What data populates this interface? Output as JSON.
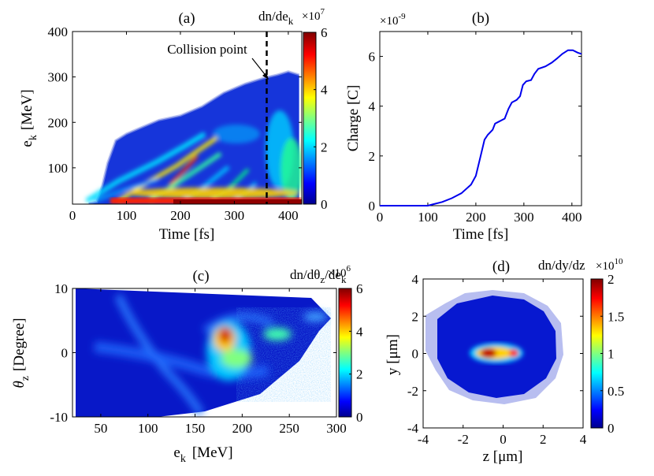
{
  "chart_data": [
    {
      "type": "heatmap",
      "panel_label": "(a)",
      "xlabel": "Time [fs]",
      "ylabel_main": "e",
      "ylabel_sub": "k",
      "ylabel_unit": "[MeV]",
      "xlim": [
        0,
        425
      ],
      "ylim": [
        20,
        400
      ],
      "xticks": [
        "0",
        "100",
        "200",
        "300",
        "400"
      ],
      "yticks": [
        "100",
        "200",
        "300",
        "400"
      ],
      "colorbar": {
        "label_main": "dn/de",
        "label_sub": "k",
        "multiplier_base": "×10",
        "multiplier_exp": "7",
        "ticks": [
          "0",
          "2",
          "4",
          "6"
        ],
        "range": [
          0,
          6
        ]
      },
      "annotation": {
        "text": "Collision point",
        "x_fs": 360
      },
      "envelope_upper_mev": [
        [
          30,
          22
        ],
        [
          45,
          25
        ],
        [
          55,
          60
        ],
        [
          65,
          110
        ],
        [
          80,
          160
        ],
        [
          100,
          175
        ],
        [
          130,
          190
        ],
        [
          160,
          205
        ],
        [
          200,
          215
        ],
        [
          240,
          235
        ],
        [
          280,
          265
        ],
        [
          320,
          285
        ],
        [
          355,
          298
        ],
        [
          380,
          305
        ],
        [
          400,
          312
        ],
        [
          420,
          305
        ]
      ]
    },
    {
      "type": "line",
      "panel_label": "(b)",
      "xlabel": "Time [fs]",
      "ylabel": "Charge [C]",
      "multiplier_base": "×10",
      "multiplier_exp": "-9",
      "xlim": [
        0,
        420
      ],
      "ylim": [
        0,
        7
      ],
      "xticks": [
        "0",
        "100",
        "200",
        "300",
        "400"
      ],
      "yticks": [
        "0",
        "2",
        "4",
        "6"
      ],
      "series": [
        {
          "name": "Charge",
          "color": "#0000ee",
          "points": [
            [
              0,
              0
            ],
            [
              100,
              0
            ],
            [
              110,
              0.05
            ],
            [
              130,
              0.15
            ],
            [
              150,
              0.3
            ],
            [
              170,
              0.5
            ],
            [
              190,
              0.85
            ],
            [
              200,
              1.2
            ],
            [
              210,
              2.0
            ],
            [
              218,
              2.65
            ],
            [
              225,
              2.85
            ],
            [
              235,
              3.05
            ],
            [
              240,
              3.3
            ],
            [
              250,
              3.4
            ],
            [
              260,
              3.5
            ],
            [
              268,
              3.9
            ],
            [
              275,
              4.15
            ],
            [
              285,
              4.25
            ],
            [
              292,
              4.4
            ],
            [
              298,
              4.85
            ],
            [
              305,
              5.0
            ],
            [
              315,
              5.05
            ],
            [
              322,
              5.3
            ],
            [
              330,
              5.5
            ],
            [
              345,
              5.6
            ],
            [
              358,
              5.75
            ],
            [
              368,
              5.9
            ],
            [
              380,
              6.1
            ],
            [
              392,
              6.25
            ],
            [
              402,
              6.25
            ],
            [
              412,
              6.15
            ],
            [
              420,
              6.1
            ]
          ]
        }
      ]
    },
    {
      "type": "heatmap",
      "panel_label": "(c)",
      "xlabel_main": "e",
      "xlabel_sub": "k",
      "xlabel_unit": "[MeV]",
      "ylabel_main": "θ",
      "ylabel_sub": "z",
      "ylabel_unit": "[Degree]",
      "xlim": [
        20,
        300
      ],
      "ylim": [
        -10,
        10
      ],
      "xticks": [
        "50",
        "100",
        "150",
        "200",
        "250",
        "300"
      ],
      "yticks": [
        "-10",
        "0",
        "10"
      ],
      "colorbar": {
        "label_main": "dn/dθ",
        "label_sub": "z",
        "label_tail": "/de",
        "label_sub2": "k",
        "multiplier_base": "×10",
        "multiplier_exp": "6",
        "ticks": [
          "0",
          "2",
          "4",
          "6"
        ],
        "range": [
          0,
          6
        ]
      }
    },
    {
      "type": "heatmap",
      "panel_label": "(d)",
      "xlabel": "z [μm]",
      "ylabel": "y [μm]",
      "xlim": [
        -4,
        4
      ],
      "ylim": [
        -4,
        4
      ],
      "xticks": [
        "-4",
        "-2",
        "0",
        "2",
        "4"
      ],
      "yticks": [
        "-4",
        "-2",
        "0",
        "2",
        "4"
      ],
      "colorbar": {
        "label": "dn/dy/dz",
        "multiplier_base": "×10",
        "multiplier_exp": "10",
        "ticks": [
          "0",
          "0.5",
          "1",
          "1.5",
          "2"
        ],
        "range": [
          0,
          2
        ]
      }
    }
  ],
  "colormap": [
    "#00008f",
    "#0000ff",
    "#0080ff",
    "#00ffff",
    "#80ff80",
    "#ffff00",
    "#ff8000",
    "#ff0000",
    "#800000"
  ]
}
